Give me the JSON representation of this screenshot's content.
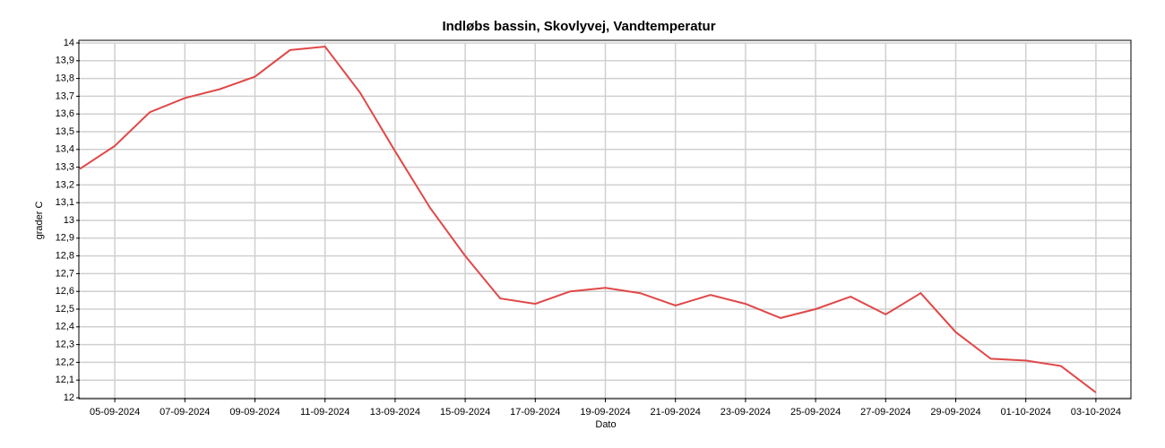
{
  "chart_data": {
    "type": "line",
    "title": "Indløbs bassin, Skovlyvej, Vandtemperatur",
    "x_label": "Dato",
    "y_label": "grader C",
    "x": [
      "04-09-2024",
      "05-09-2024",
      "06-09-2024",
      "07-09-2024",
      "08-09-2024",
      "09-09-2024",
      "10-09-2024",
      "11-09-2024",
      "12-09-2024",
      "13-09-2024",
      "14-09-2024",
      "15-09-2024",
      "16-09-2024",
      "17-09-2024",
      "18-09-2024",
      "19-09-2024",
      "20-09-2024",
      "21-09-2024",
      "22-09-2024",
      "23-09-2024",
      "24-09-2024",
      "25-09-2024",
      "26-09-2024",
      "27-09-2024",
      "28-09-2024",
      "29-09-2024",
      "30-09-2024",
      "01-10-2024",
      "02-10-2024",
      "03-10-2024"
    ],
    "series": [
      {
        "name": "Vandtemperatur",
        "color": "#e04848",
        "values": [
          13.29,
          13.42,
          13.61,
          13.69,
          13.74,
          13.81,
          13.96,
          13.98,
          13.72,
          13.39,
          13.07,
          12.8,
          12.56,
          12.53,
          12.6,
          12.62,
          12.59,
          12.52,
          12.58,
          12.53,
          12.45,
          12.5,
          12.57,
          12.47,
          12.59,
          12.37,
          12.22,
          12.21,
          12.18,
          12.03
        ]
      }
    ],
    "xlim": [
      "04-09-2024",
      "04-10-2024"
    ],
    "xticks": [
      "05-09-2024",
      "07-09-2024",
      "09-09-2024",
      "11-09-2024",
      "13-09-2024",
      "15-09-2024",
      "17-09-2024",
      "19-09-2024",
      "21-09-2024",
      "23-09-2024",
      "25-09-2024",
      "27-09-2024",
      "29-09-2024",
      "01-10-2024",
      "03-10-2024"
    ],
    "ylim": [
      12,
      14
    ],
    "yticks": [
      12,
      {
        "value": 12.1,
        "label": "12,1"
      },
      {
        "value": 12.2,
        "label": "12,2"
      },
      {
        "value": 12.3,
        "label": "12,3"
      },
      {
        "value": 12.4,
        "label": "12,4"
      },
      {
        "value": 12.5,
        "label": "12,5"
      },
      {
        "value": 12.6,
        "label": "12,6"
      },
      {
        "value": 12.7,
        "label": "12,7"
      },
      {
        "value": 12.8,
        "label": "12,8"
      },
      {
        "value": 12.9,
        "label": "12,9"
      },
      13,
      {
        "value": 13.1,
        "label": "13,1"
      },
      {
        "value": 13.2,
        "label": "13,2"
      },
      {
        "value": 13.3,
        "label": "13,3"
      },
      {
        "value": 13.4,
        "label": "13,4"
      },
      {
        "value": 13.5,
        "label": "13,5"
      },
      {
        "value": 13.6,
        "label": "13,6"
      },
      {
        "value": 13.7,
        "label": "13,7"
      },
      {
        "value": 13.8,
        "label": "13,8"
      },
      {
        "value": 13.9,
        "label": "13,9"
      },
      14
    ],
    "grid": true
  }
}
